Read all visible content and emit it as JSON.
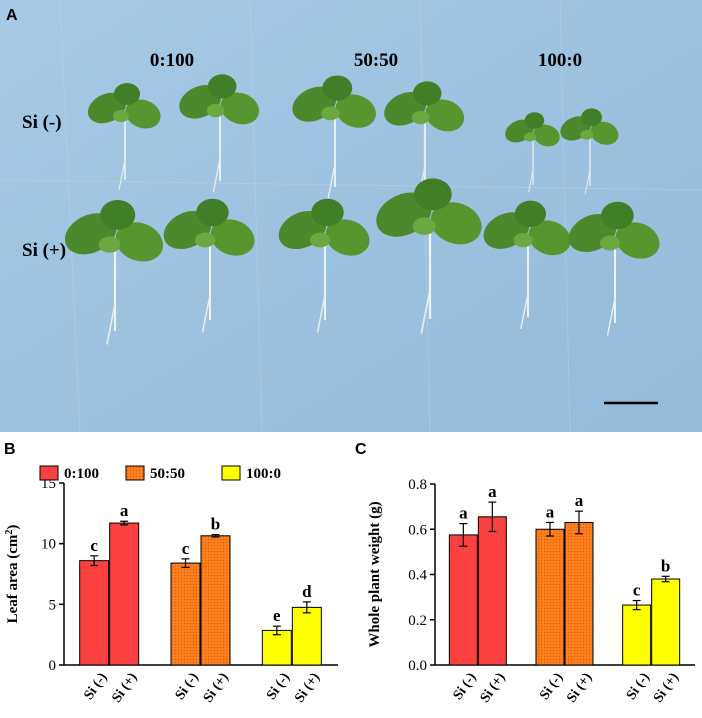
{
  "photo": {
    "panel_label": "A",
    "ratio_labels": [
      "0:100",
      "50:50",
      "100:0"
    ],
    "row_labels": [
      "Si (-)",
      "Si (+)"
    ],
    "background_color": "#9ec4e2",
    "leaf_color": "#4a8a2c"
  },
  "chart_data": [
    {
      "type": "bar",
      "panel_label": "B",
      "ylabel_main": "Leaf area (cm",
      "ylabel_sup": "2",
      "ylabel_end": ")",
      "ylim": [
        0,
        15
      ],
      "yticks": [
        "0",
        "5",
        "10",
        "15"
      ],
      "legend_entries": [
        "0:100",
        "50:50",
        "100:0"
      ],
      "groups": [
        {
          "bars": [
            {
              "label": "Si (-)",
              "value": 8.6,
              "err": 0.4,
              "letter": "c"
            },
            {
              "label": "Si (+)",
              "value": 11.7,
              "err": 0.15,
              "letter": "a"
            }
          ]
        },
        {
          "bars": [
            {
              "label": "Si (-)",
              "value": 8.4,
              "err": 0.35,
              "letter": "c"
            },
            {
              "label": "Si (+)",
              "value": 10.65,
              "err": 0.1,
              "letter": "b"
            }
          ]
        },
        {
          "bars": [
            {
              "label": "Si (-)",
              "value": 2.85,
              "err": 0.35,
              "letter": "e"
            },
            {
              "label": "Si (+)",
              "value": 4.75,
              "err": 0.45,
              "letter": "d"
            }
          ]
        }
      ]
    },
    {
      "type": "bar",
      "panel_label": "C",
      "ylabel_main": "Whole plant weight (g)",
      "ylabel_sup": "",
      "ylabel_end": "",
      "ylim": [
        0,
        0.8
      ],
      "yticks": [
        "0.0",
        "0.2",
        "0.4",
        "0.6",
        "0.8"
      ],
      "legend_entries": [],
      "groups": [
        {
          "bars": [
            {
              "label": "Si (-)",
              "value": 0.575,
              "err": 0.05,
              "letter": "a"
            },
            {
              "label": "Si (+)",
              "value": 0.655,
              "err": 0.065,
              "letter": "a"
            }
          ]
        },
        {
          "bars": [
            {
              "label": "Si (-)",
              "value": 0.6,
              "err": 0.03,
              "letter": "a"
            },
            {
              "label": "Si (+)",
              "value": 0.63,
              "err": 0.05,
              "letter": "a"
            }
          ]
        },
        {
          "bars": [
            {
              "label": "Si (-)",
              "value": 0.265,
              "err": 0.02,
              "letter": "c"
            },
            {
              "label": "Si (+)",
              "value": 0.38,
              "err": 0.012,
              "letter": "b"
            }
          ]
        }
      ]
    }
  ],
  "colors": {
    "group_0": "#fb4040",
    "group_1": "#ff7f1e",
    "group_2": "#ffff00",
    "axis": "#000000"
  }
}
